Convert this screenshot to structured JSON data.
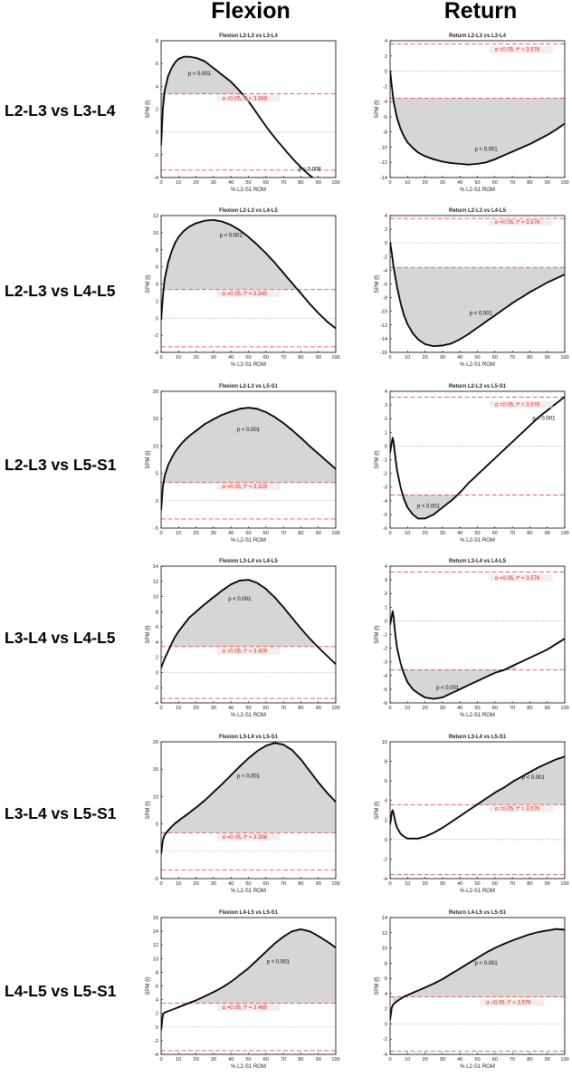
{
  "figure": {
    "column_headers": [
      "Flexion",
      "Return"
    ],
    "row_labels": [
      "L2-L3 vs L3-L4",
      "L2-L3 vs L4-L5",
      "L2-L3 vs L5-S1",
      "L3-L4 vs L4-L5",
      "L3-L4 vs L5-S1",
      "L4-L5 vs L5-S1"
    ]
  },
  "colors": {
    "curve": "#000000",
    "threshold": "#e05050",
    "cluster_fill": "#d6d6d6",
    "zero_line": "#909090",
    "alpha_text": "#e02020"
  },
  "chart_data": [
    {
      "type": "line",
      "title": "Flexion L2-L3 vs L3-L4",
      "xlabel": "% L2-S1 ROM",
      "ylabel": "SPM {t}",
      "xlim": [
        0,
        100
      ],
      "ylim": [
        -4,
        8
      ],
      "xticks": [
        0,
        10,
        20,
        30,
        40,
        50,
        60,
        70,
        80,
        90,
        100
      ],
      "yticks": [
        -4,
        -2,
        0,
        2,
        4,
        6,
        8
      ],
      "threshold": 3.348,
      "alpha_label": "α =0.05,   t* = 3.348",
      "x": [
        0,
        1,
        2,
        4,
        6,
        8,
        10,
        13,
        16,
        20,
        25,
        30,
        35,
        40,
        45,
        50,
        55,
        60,
        65,
        70,
        75,
        80,
        85,
        90,
        95,
        100
      ],
      "y": [
        -1.2,
        2.0,
        3.6,
        4.9,
        5.6,
        6.1,
        6.4,
        6.6,
        6.6,
        6.5,
        6.2,
        5.6,
        5.0,
        4.4,
        3.6,
        2.7,
        1.6,
        0.5,
        -0.5,
        -1.4,
        -2.3,
        -3.1,
        -3.8,
        -4.4,
        -4.9,
        -5.1
      ],
      "fill_ranges": [
        [
          0,
          46
        ]
      ],
      "fill_sign": 1,
      "annotations": [
        {
          "text": "p < 0.001",
          "x": 22,
          "y": 5.0
        },
        {
          "text": "p = 0.008",
          "x": 85,
          "y": -3.4
        }
      ],
      "alpha_pos": {
        "x": 35,
        "y": 2.8
      }
    },
    {
      "type": "line",
      "title": "Return L2-L3 vs L3-L4",
      "xlabel": "% L2-S1 ROM",
      "ylabel": "SPM {t}",
      "xlim": [
        0,
        100
      ],
      "ylim": [
        -14,
        4
      ],
      "xticks": [
        0,
        10,
        20,
        30,
        40,
        50,
        60,
        70,
        80,
        90,
        100
      ],
      "yticks": [
        -14,
        -12,
        -10,
        -8,
        -6,
        -4,
        -2,
        0,
        2,
        4
      ],
      "threshold": 3.576,
      "alpha_label": "α =0.05,   t* = 3.576",
      "x": [
        0,
        1,
        2,
        4,
        6,
        8,
        10,
        13,
        16,
        20,
        25,
        30,
        35,
        40,
        45,
        50,
        55,
        60,
        65,
        70,
        75,
        80,
        85,
        90,
        95,
        100
      ],
      "y": [
        0.1,
        -2.0,
        -4.0,
        -6.2,
        -7.6,
        -8.6,
        -9.4,
        -10.1,
        -10.7,
        -11.2,
        -11.6,
        -11.9,
        -12.1,
        -12.2,
        -12.3,
        -12.2,
        -12.0,
        -11.6,
        -11.1,
        -10.6,
        -10.1,
        -9.6,
        -9.0,
        -8.4,
        -7.7,
        -6.9
      ],
      "fill_ranges": [
        [
          2,
          100
        ]
      ],
      "fill_sign": -1,
      "annotations": [
        {
          "text": "p < 0.001",
          "x": 55,
          "y": -10.5
        }
      ],
      "alpha_pos": {
        "x": 60,
        "y": 2.6
      }
    },
    {
      "type": "line",
      "title": "Flexion L2-L3 vs L4-L5",
      "xlabel": "% L2-S1 ROM",
      "ylabel": "SPM {t}",
      "xlim": [
        0,
        100
      ],
      "ylim": [
        -4,
        12
      ],
      "xticks": [
        0,
        10,
        20,
        30,
        40,
        50,
        60,
        70,
        80,
        90,
        100
      ],
      "yticks": [
        -4,
        -2,
        0,
        2,
        4,
        6,
        8,
        10,
        12
      ],
      "threshold": 3.345,
      "alpha_label": "α =0.05,   t* = 3.345",
      "x": [
        0,
        1,
        2,
        4,
        6,
        8,
        10,
        13,
        16,
        20,
        25,
        30,
        35,
        40,
        45,
        50,
        55,
        60,
        65,
        70,
        75,
        80,
        85,
        90,
        95,
        100
      ],
      "y": [
        -0.2,
        2.5,
        4.5,
        6.5,
        7.8,
        8.8,
        9.5,
        10.2,
        10.7,
        11.1,
        11.4,
        11.5,
        11.3,
        10.9,
        10.3,
        9.5,
        8.6,
        7.6,
        6.5,
        5.3,
        4.1,
        2.9,
        1.7,
        0.6,
        -0.4,
        -1.2
      ],
      "fill_ranges": [
        [
          1.5,
          80
        ]
      ],
      "fill_sign": 1,
      "annotations": [
        {
          "text": "p < 0.001",
          "x": 40,
          "y": 9.5
        }
      ],
      "alpha_pos": {
        "x": 35,
        "y": 2.7
      }
    },
    {
      "type": "line",
      "title": "Return L2-L3 vs L4-L5",
      "xlabel": "% L2-S1 ROM",
      "ylabel": "SPM {t}",
      "xlim": [
        0,
        100
      ],
      "ylim": [
        -16,
        4
      ],
      "xticks": [
        0,
        10,
        20,
        30,
        40,
        50,
        60,
        70,
        80,
        90,
        100
      ],
      "yticks": [
        -16,
        -14,
        -12,
        -10,
        -8,
        -6,
        -4,
        -2,
        0,
        2,
        4
      ],
      "threshold": 3.576,
      "alpha_label": "α =0.05,   t* = 3.576",
      "x": [
        0,
        1,
        2,
        4,
        6,
        8,
        10,
        13,
        16,
        20,
        25,
        30,
        35,
        40,
        45,
        50,
        55,
        60,
        65,
        70,
        75,
        80,
        85,
        90,
        95,
        100
      ],
      "y": [
        0.1,
        -1.5,
        -3.5,
        -6.5,
        -8.8,
        -10.6,
        -11.9,
        -13.2,
        -14.1,
        -14.8,
        -15.1,
        -15.0,
        -14.7,
        -14.1,
        -13.3,
        -12.4,
        -11.5,
        -10.6,
        -9.7,
        -8.8,
        -8.0,
        -7.2,
        -6.5,
        -5.8,
        -5.2,
        -4.6
      ],
      "fill_ranges": [
        [
          2,
          100
        ]
      ],
      "fill_sign": -1,
      "annotations": [
        {
          "text": "p < 0.001",
          "x": 52,
          "y": -10.5
        }
      ],
      "alpha_pos": {
        "x": 60,
        "y": 2.8
      }
    },
    {
      "type": "line",
      "title": "Flexion L2-L3 vs L5-S1",
      "xlabel": "% L2-S1 ROM",
      "ylabel": "SPM {t}",
      "xlim": [
        0,
        100
      ],
      "ylim": [
        -5,
        20
      ],
      "xticks": [
        0,
        10,
        20,
        30,
        40,
        50,
        60,
        70,
        80,
        90,
        100
      ],
      "yticks": [
        -5,
        0,
        5,
        10,
        15,
        20
      ],
      "threshold": 3.329,
      "alpha_label": "α =0.05,   t* = 3.329",
      "x": [
        0,
        1,
        2,
        4,
        6,
        8,
        10,
        13,
        16,
        20,
        25,
        30,
        35,
        40,
        45,
        50,
        55,
        60,
        65,
        70,
        75,
        80,
        85,
        90,
        95,
        100
      ],
      "y": [
        -1.8,
        2.5,
        4.5,
        6.5,
        7.8,
        8.9,
        9.8,
        10.9,
        11.8,
        12.8,
        14.0,
        14.9,
        15.7,
        16.3,
        16.8,
        17.0,
        16.8,
        16.2,
        15.3,
        14.2,
        12.9,
        11.5,
        10.0,
        8.6,
        7.2,
        5.8
      ],
      "fill_ranges": [
        [
          1,
          100
        ]
      ],
      "fill_sign": 1,
      "annotations": [
        {
          "text": "p < 0.001",
          "x": 50,
          "y": 12.7
        }
      ],
      "alpha_pos": {
        "x": 35,
        "y": 2.3
      }
    },
    {
      "type": "line",
      "title": "Return L2-L3 vs L5-S1",
      "xlabel": "% L2-S1 ROM",
      "ylabel": "SPM {t}",
      "xlim": [
        0,
        100
      ],
      "ylim": [
        -6,
        4
      ],
      "xticks": [
        0,
        10,
        20,
        30,
        40,
        50,
        60,
        70,
        80,
        90,
        100
      ],
      "yticks": [
        -6,
        -5,
        -4,
        -3,
        -2,
        -1,
        0,
        1,
        2,
        3,
        4
      ],
      "threshold": 3.576,
      "alpha_label": "α =0.05,   t* = 3.576",
      "x": [
        0,
        1,
        1.5,
        2,
        3,
        4,
        6,
        8,
        10,
        13,
        16,
        20,
        25,
        30,
        35,
        40,
        45,
        50,
        55,
        60,
        65,
        70,
        75,
        80,
        85,
        90,
        95,
        100
      ],
      "y": [
        -0.5,
        0.3,
        0.6,
        0.3,
        -0.8,
        -1.8,
        -3.0,
        -3.9,
        -4.5,
        -5.0,
        -5.3,
        -5.3,
        -5.0,
        -4.5,
        -4.0,
        -3.4,
        -2.7,
        -2.1,
        -1.5,
        -0.9,
        -0.3,
        0.3,
        0.9,
        1.5,
        2.1,
        2.6,
        3.1,
        3.6
      ],
      "fill_ranges": [
        [
          6.5,
          38
        ]
      ],
      "fill_sign": -1,
      "annotations": [
        {
          "text": "p < 0.001",
          "x": 88,
          "y": 1.9
        },
        {
          "text": "p < 0.001",
          "x": 22,
          "y": -4.5
        }
      ],
      "alpha_pos": {
        "x": 60,
        "y": 2.9
      }
    },
    {
      "type": "line",
      "title": "Flexion L3-L4 vs L4-L5",
      "xlabel": "% L2-S1 ROM",
      "ylabel": "SPM {t}",
      "xlim": [
        0,
        100
      ],
      "ylim": [
        -4,
        14
      ],
      "xticks": [
        0,
        10,
        20,
        30,
        40,
        50,
        60,
        70,
        80,
        90,
        100
      ],
      "yticks": [
        -4,
        -2,
        0,
        2,
        4,
        6,
        8,
        10,
        12,
        14
      ],
      "threshold": 3.409,
      "alpha_label": "α =0.05,   t* = 3.409",
      "x": [
        0,
        2,
        4,
        6,
        8,
        10,
        13,
        16,
        20,
        25,
        30,
        35,
        40,
        45,
        50,
        55,
        60,
        65,
        70,
        75,
        80,
        85,
        90,
        95,
        100
      ],
      "y": [
        0.6,
        1.8,
        2.8,
        3.8,
        4.7,
        5.4,
        6.3,
        7.2,
        8.0,
        9.0,
        9.9,
        10.8,
        11.6,
        12.1,
        12.2,
        11.8,
        11.0,
        9.9,
        8.6,
        7.2,
        5.8,
        4.5,
        3.3,
        2.2,
        1.1
      ],
      "fill_ranges": [
        [
          5,
          87
        ]
      ],
      "fill_sign": 1,
      "annotations": [
        {
          "text": "p < 0.001",
          "x": 45,
          "y": 9.5
        }
      ],
      "alpha_pos": {
        "x": 35,
        "y": 2.6
      }
    },
    {
      "type": "line",
      "title": "Return L3-L4 vs L4-L5",
      "xlabel": "% L2-S1 ROM",
      "ylabel": "SPM {t}",
      "xlim": [
        0,
        100
      ],
      "ylim": [
        -6,
        4
      ],
      "xticks": [
        0,
        10,
        20,
        30,
        40,
        50,
        60,
        70,
        80,
        90,
        100
      ],
      "yticks": [
        -6,
        -5,
        -4,
        -3,
        -2,
        -1,
        0,
        1,
        2,
        3,
        4
      ],
      "threshold": 3.576,
      "alpha_label": "α =0.05,   t* = 3.576",
      "x": [
        0,
        1,
        1.5,
        2,
        3,
        4,
        6,
        8,
        10,
        13,
        16,
        20,
        25,
        30,
        35,
        40,
        45,
        50,
        55,
        60,
        65,
        70,
        75,
        80,
        85,
        90,
        95,
        100
      ],
      "y": [
        -0.3,
        0.4,
        0.7,
        0.3,
        -1.0,
        -2.0,
        -3.1,
        -3.9,
        -4.5,
        -5.0,
        -5.3,
        -5.6,
        -5.7,
        -5.6,
        -5.3,
        -5.0,
        -4.7,
        -4.4,
        -4.1,
        -3.8,
        -3.6,
        -3.3,
        -3.0,
        -2.7,
        -2.4,
        -2.1,
        -1.7,
        -1.3
      ],
      "fill_ranges": [
        [
          6,
          72
        ]
      ],
      "fill_sign": -1,
      "annotations": [
        {
          "text": "p < 0.001",
          "x": 33,
          "y": -5.0
        }
      ],
      "alpha_pos": {
        "x": 60,
        "y": 3.0
      }
    },
    {
      "type": "line",
      "title": "Flexion L3-L4 vs L5-S1",
      "xlabel": "% L2-S1 ROM",
      "ylabel": "SPM {t}",
      "xlim": [
        0,
        100
      ],
      "ylim": [
        -5,
        20
      ],
      "xticks": [
        0,
        10,
        20,
        30,
        40,
        50,
        60,
        70,
        80,
        90,
        100
      ],
      "yticks": [
        -5,
        0,
        5,
        10,
        15,
        20
      ],
      "threshold": 3.396,
      "alpha_label": "α =0.05,   t* = 3.396",
      "x": [
        0,
        1,
        2,
        4,
        6,
        8,
        10,
        13,
        16,
        20,
        25,
        30,
        35,
        40,
        45,
        50,
        55,
        60,
        65,
        70,
        75,
        80,
        85,
        90,
        95,
        100
      ],
      "y": [
        -0.5,
        2.0,
        3.0,
        3.8,
        4.5,
        5.1,
        5.6,
        6.3,
        7.0,
        8.0,
        9.3,
        10.8,
        12.3,
        13.9,
        15.5,
        17.0,
        18.3,
        19.3,
        19.8,
        19.5,
        18.5,
        16.8,
        14.7,
        12.6,
        10.7,
        9.0
      ],
      "fill_ranges": [
        [
          2.5,
          100
        ]
      ],
      "fill_sign": 1,
      "annotations": [
        {
          "text": "p < 0.001",
          "x": 50,
          "y": 13.5
        }
      ],
      "alpha_pos": {
        "x": 35,
        "y": 2.3
      }
    },
    {
      "type": "line",
      "title": "Return L3-L4 vs L5-S1",
      "xlabel": "% L2-S1 ROM",
      "ylabel": "SPM {t}",
      "xlim": [
        0,
        100
      ],
      "ylim": [
        -4,
        10
      ],
      "xticks": [
        0,
        10,
        20,
        30,
        40,
        50,
        60,
        70,
        80,
        90,
        100
      ],
      "yticks": [
        -4,
        -2,
        0,
        2,
        4,
        6,
        8,
        10
      ],
      "threshold": 3.576,
      "alpha_label": "α =0.05,   t* = 3.576",
      "x": [
        0,
        1,
        1.5,
        2,
        3,
        4,
        6,
        8,
        10,
        13,
        16,
        20,
        25,
        30,
        35,
        40,
        45,
        50,
        55,
        60,
        65,
        70,
        75,
        80,
        85,
        90,
        95,
        100
      ],
      "y": [
        1.5,
        2.8,
        3.0,
        2.7,
        1.8,
        1.2,
        0.6,
        0.3,
        0.1,
        0.1,
        0.1,
        0.3,
        0.7,
        1.2,
        1.8,
        2.4,
        3.0,
        3.6,
        4.2,
        4.8,
        5.3,
        5.9,
        6.4,
        6.9,
        7.4,
        7.8,
        8.2,
        8.5
      ],
      "fill_ranges": [
        [
          49,
          100
        ]
      ],
      "fill_sign": 1,
      "annotations": [
        {
          "text": "p < 0.001",
          "x": 82,
          "y": 6.2
        }
      ],
      "alpha_pos": {
        "x": 60,
        "y": 3.0
      }
    },
    {
      "type": "line",
      "title": "Flexion L4-L5 vs L5-S1",
      "xlabel": "% L2-S1 ROM",
      "ylabel": "SPM {t}",
      "xlim": [
        0,
        100
      ],
      "ylim": [
        -4,
        16
      ],
      "xticks": [
        0,
        10,
        20,
        30,
        40,
        50,
        60,
        70,
        80,
        90,
        100
      ],
      "yticks": [
        -4,
        -2,
        0,
        2,
        4,
        6,
        8,
        10,
        12,
        14,
        16
      ],
      "threshold": 3.465,
      "alpha_label": "α =0.05,   t* = 3.465",
      "x": [
        0,
        1,
        2,
        4,
        6,
        8,
        10,
        13,
        16,
        20,
        25,
        30,
        35,
        40,
        45,
        50,
        55,
        60,
        65,
        70,
        75,
        80,
        85,
        90,
        95,
        100
      ],
      "y": [
        -0.5,
        1.8,
        2.1,
        2.3,
        2.5,
        2.7,
        2.9,
        3.2,
        3.5,
        3.9,
        4.5,
        5.1,
        5.8,
        6.6,
        7.6,
        8.6,
        9.8,
        11.0,
        12.2,
        13.2,
        14.0,
        14.3,
        14.0,
        13.3,
        12.5,
        11.6
      ],
      "fill_ranges": [
        [
          16,
          100
        ]
      ],
      "fill_sign": 1,
      "annotations": [
        {
          "text": "p < 0.001",
          "x": 67,
          "y": 9.3
        }
      ],
      "alpha_pos": {
        "x": 35,
        "y": 2.6
      }
    },
    {
      "type": "line",
      "title": "Return L4-L5 vs L5-S1",
      "xlabel": "% L2-S1 ROM",
      "ylabel": "SPM {t}",
      "xlim": [
        0,
        100
      ],
      "ylim": [
        -4,
        14
      ],
      "xticks": [
        0,
        10,
        20,
        30,
        40,
        50,
        60,
        70,
        80,
        90,
        100
      ],
      "yticks": [
        -4,
        -2,
        0,
        2,
        4,
        6,
        8,
        10,
        12,
        14
      ],
      "threshold": 3.576,
      "alpha_label": "α =0.05,   t* = 3.576",
      "x": [
        0,
        1,
        2,
        4,
        6,
        8,
        10,
        13,
        16,
        20,
        25,
        30,
        35,
        40,
        45,
        50,
        55,
        60,
        65,
        70,
        75,
        80,
        85,
        90,
        95,
        100
      ],
      "y": [
        0.5,
        2.2,
        2.6,
        3.0,
        3.3,
        3.6,
        3.8,
        4.1,
        4.4,
        4.8,
        5.3,
        5.9,
        6.6,
        7.3,
        8.0,
        8.7,
        9.4,
        10.0,
        10.5,
        11.0,
        11.4,
        11.8,
        12.1,
        12.3,
        12.5,
        12.4
      ],
      "fill_ranges": [
        [
          1.5,
          100
        ]
      ],
      "fill_sign": 1,
      "annotations": [
        {
          "text": "p < 0.001",
          "x": 55,
          "y": 7.8
        }
      ],
      "alpha_pos": {
        "x": 55,
        "y": 2.6
      }
    }
  ]
}
